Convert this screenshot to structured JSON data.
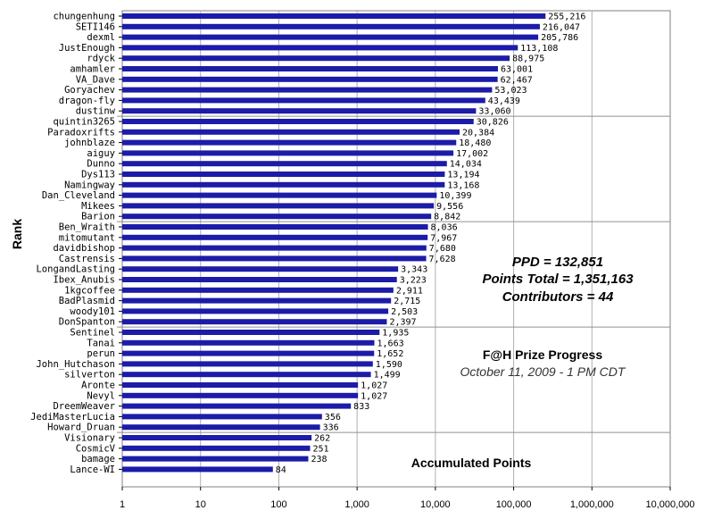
{
  "chart_data": {
    "type": "bar",
    "orientation": "horizontal",
    "ylabel": "Rank",
    "xlabel": "Accumulated Points",
    "x_scale": "log",
    "xlim": [
      1,
      10000000
    ],
    "x_ticks": [
      {
        "value": 1,
        "label": "1"
      },
      {
        "value": 10,
        "label": "10"
      },
      {
        "value": 100,
        "label": "100"
      },
      {
        "value": 1000,
        "label": "1,000"
      },
      {
        "value": 10000,
        "label": "10,000"
      },
      {
        "value": 100000,
        "label": "100,000"
      },
      {
        "value": 1000000,
        "label": "1,000,000"
      },
      {
        "value": 10000000,
        "label": "10,000,000"
      }
    ],
    "grid": "vertical lines at decades",
    "bar_color": "#1c1ca8",
    "categories": [
      "chungenhung",
      "SETI146",
      "dexml",
      "JustEnough",
      "rdyck",
      "amhamler",
      "VA_Dave",
      "Goryachev",
      "dragon-fly",
      "dustinw",
      "quintin3265",
      "Paradoxrifts",
      "johnblaze",
      "aiguy",
      "Dunno",
      "Dys113",
      "Namingway",
      "Dan_Cleveland",
      "Mikees",
      "Barion",
      "Ben_Wraith",
      "mitomutant",
      "davidbishop",
      "Castrensis",
      "LongandLasting",
      "Ibex_Anubis",
      "1kgcoffee",
      "BadPlasmid",
      "woody101",
      "DonSpanton",
      "Sentinel",
      "Tanai",
      "perun",
      "John_Hutchason",
      "silverton",
      "Aronte",
      "Nevyl",
      "DreemWeaver",
      "JediMasterLucia",
      "Howard_Druan",
      "Visionary",
      "CosmicV",
      "bamage",
      "Lance-WI"
    ],
    "values": [
      255216,
      216047,
      205786,
      113108,
      88975,
      63001,
      62467,
      53023,
      43439,
      33060,
      30826,
      20384,
      18480,
      17002,
      14034,
      13194,
      13168,
      10399,
      9556,
      8842,
      8036,
      7967,
      7680,
      7628,
      3343,
      3223,
      2911,
      2715,
      2503,
      2397,
      1935,
      1663,
      1652,
      1590,
      1499,
      1027,
      1027,
      833,
      356,
      336,
      262,
      251,
      238,
      84
    ],
    "value_labels": [
      "255,216",
      "216,047",
      "205,786",
      "113,108",
      "88,975",
      "63,001",
      "62,467",
      "53,023",
      "43,439",
      "33,060",
      "30,826",
      "20,384",
      "18,480",
      "17,002",
      "14,034",
      "13,194",
      "13,168",
      "10,399",
      "9,556",
      "8,842",
      "8,036",
      "7,967",
      "7,680",
      "7,628",
      "3,343",
      "3,223",
      "2,911",
      "2,715",
      "2,503",
      "2,397",
      "1,935",
      "1,663",
      "1,652",
      "1,590",
      "1,499",
      "1,027",
      "1,027",
      "833",
      "356",
      "336",
      "262",
      "251",
      "238",
      "84"
    ],
    "annotations": {
      "ppd": "PPD = 132,851",
      "points_total": "Points Total = 1,351,163",
      "contributors": "Contributors = 44",
      "title": "F@H Prize Progress",
      "subtitle": "October 11, 2009 - 1 PM CDT"
    }
  }
}
